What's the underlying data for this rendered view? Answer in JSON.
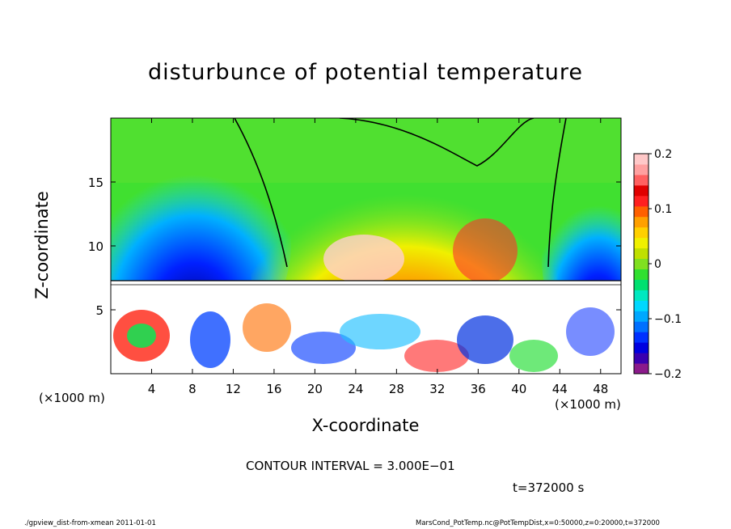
{
  "chart_data": {
    "type": "heatmap",
    "title": "disturbunce of potential temperature",
    "xlabel": "X-coordinate",
    "ylabel": "Z-coordinate",
    "x_unit_label": "(×1000 m)",
    "xlim": [
      0,
      50
    ],
    "ylim": [
      0,
      20
    ],
    "x_ticks": [
      4,
      8,
      12,
      16,
      20,
      24,
      28,
      32,
      36,
      40,
      44,
      48
    ],
    "y_ticks": [
      5,
      10,
      15
    ],
    "colorbar": {
      "range": [
        -0.2,
        0.2
      ],
      "ticks": [
        {
          "value": 0.2,
          "label": "0.2"
        },
        {
          "value": 0.1,
          "label": "0.1"
        },
        {
          "value": 0,
          "label": "0"
        },
        {
          "value": -0.1,
          "label": "−0.1"
        },
        {
          "value": -0.2,
          "label": "−0.2"
        }
      ],
      "colors": [
        "#8B1A8B",
        "#3A00B0",
        "#0000E0",
        "#0030FF",
        "#0070FF",
        "#00A8FF",
        "#00D8FF",
        "#00E8C0",
        "#00E070",
        "#30E030",
        "#80E020",
        "#C0E000",
        "#F0F000",
        "#FFD000",
        "#FFA000",
        "#FF6000",
        "#FF2020",
        "#E00000",
        "#FF6060",
        "#FFA0A0",
        "#FFC8C8"
      ]
    },
    "annotations": {
      "contour_interval": "CONTOUR INTERVAL = 3.000E−01",
      "time": "t=372000 s",
      "footer_left": "./gpview_dist-from-xmean  2011-01-01",
      "footer_right": "MarsCond_PotTemp.nc@PotTempDist,x=0:50000,z=0:20000,t=372000"
    }
  }
}
